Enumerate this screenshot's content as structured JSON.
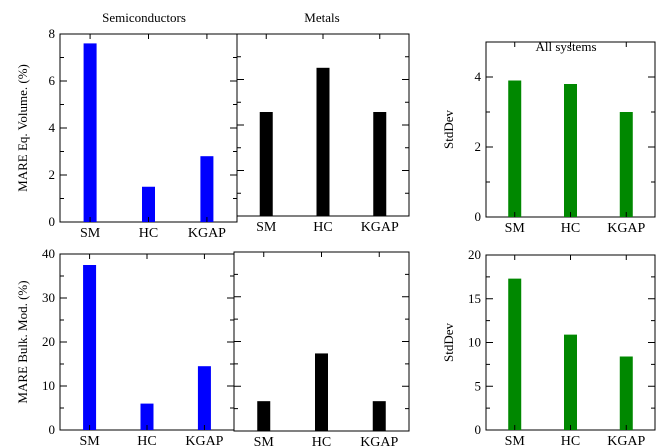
{
  "titles": {
    "semiconductors": "Semiconductors",
    "metals": "Metals",
    "all_systems": "All systems"
  },
  "colors": {
    "semiconductors": "#0000ff",
    "metals": "#000000",
    "all_systems": "#008800"
  },
  "chart_data": [
    {
      "type": "bar",
      "title": "Semiconductors",
      "ylabel": "MARE Eq. Volume. (%)",
      "categories": [
        "SM",
        "HC",
        "KGAP"
      ],
      "values": [
        7.6,
        1.5,
        2.8
      ],
      "ylim": [
        0,
        8
      ],
      "yticks": [
        0,
        2,
        4,
        6,
        8
      ],
      "color": "#0000ff"
    },
    {
      "type": "bar",
      "title": "Metals",
      "ylabel": "",
      "categories": [
        "SM",
        "HC",
        "KGAP"
      ],
      "values": [
        4.0,
        5.7,
        4.0
      ],
      "ylim": [
        0,
        7
      ],
      "yticks": [],
      "color": "#000000"
    },
    {
      "type": "bar",
      "title": "All systems",
      "ylabel": "StdDev",
      "categories": [
        "SM",
        "HC",
        "KGAP"
      ],
      "values": [
        3.9,
        3.8,
        3.0
      ],
      "ylim": [
        0,
        5
      ],
      "yticks": [
        0,
        2,
        4
      ],
      "color": "#008800"
    },
    {
      "type": "bar",
      "title": "",
      "ylabel": "MARE Bulk. Mod. (%)",
      "categories": [
        "SM",
        "HC",
        "KGAP"
      ],
      "values": [
        37.5,
        6.0,
        14.5
      ],
      "ylim": [
        0,
        40
      ],
      "yticks": [
        0,
        10,
        20,
        30,
        40
      ],
      "color": "#0000ff"
    },
    {
      "type": "bar",
      "title": "",
      "ylabel": "",
      "categories": [
        "SM",
        "HC",
        "KGAP"
      ],
      "values": [
        5.0,
        13.0,
        5.0
      ],
      "ylim": [
        0,
        30
      ],
      "yticks": [],
      "color": "#000000"
    },
    {
      "type": "bar",
      "title": "",
      "ylabel": "StdDev",
      "categories": [
        "SM",
        "HC",
        "KGAP"
      ],
      "values": [
        17.3,
        10.9,
        8.4
      ],
      "ylim": [
        0,
        20
      ],
      "yticks": [
        0,
        5,
        10,
        15,
        20
      ],
      "color": "#008800"
    }
  ]
}
